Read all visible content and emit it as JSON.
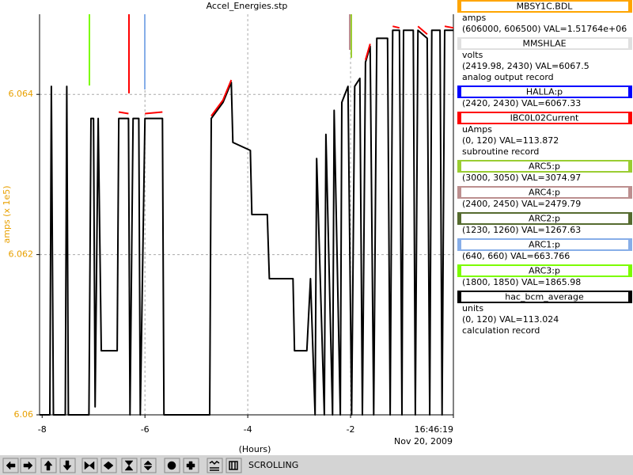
{
  "chart_data": {
    "type": "line",
    "title": "Accel_Energies.stp",
    "ylabel": "amps (x 1e5)",
    "xlabel": "(Hours)",
    "x_date_label": "Nov 20, 2009",
    "axis_color": "#e8a000",
    "grid": true,
    "xlim": [
      -8.05,
      0
    ],
    "xticks": [
      -8,
      -6,
      -4,
      -2,
      {
        "value": 0,
        "label": "16:46:19"
      }
    ],
    "ylim": [
      6.06,
      6.065
    ],
    "yticks": [
      6.06,
      6.062,
      6.064
    ],
    "series": [
      {
        "name": "MBSY1C.BDL",
        "color": "#ffa500",
        "lines": [
          "amps",
          "(606000, 606500)  VAL=1.51764e+06"
        ]
      },
      {
        "name": "MMSHLAE",
        "color": "#e0e0e0",
        "lines": [
          "volts",
          "(2419.98, 2430) VAL=6067.5",
          "analog output record"
        ]
      },
      {
        "name": "HALLA:p",
        "color": "#0000ff",
        "lines": [
          "(2420, 2430) VAL=6067.33"
        ]
      },
      {
        "name": "IBC0L02Current",
        "color": "#ff0000",
        "lines": [
          "uAmps",
          "(0, 120) VAL=113.872",
          "subroutine record"
        ],
        "x": [
          -6.51,
          -6.32,
          -6.3,
          -6.0,
          -5.66,
          -5.6,
          -4.71,
          -4.48,
          -4.32,
          -4.3,
          -1.71,
          -1.62,
          -1.6,
          -1.18,
          -1.05,
          -1.02,
          -0.69,
          -0.51,
          -0.49,
          -0.17,
          0.0
        ],
        "values": [
          6.06378,
          6.06376,
          null,
          6.06376,
          6.06378,
          null,
          6.06373,
          6.06393,
          6.06418,
          null,
          6.06443,
          6.06463,
          null,
          6.06485,
          6.06483,
          null,
          6.06485,
          6.06475,
          null,
          6.06485,
          6.06483
        ]
      },
      {
        "name": "ARC5:p",
        "color": "#9acd32",
        "lines": [
          "(3000, 3050) VAL=3074.97"
        ]
      },
      {
        "name": "ARC4:p",
        "color": "#bc8f8f",
        "lines": [
          "(2400, 2450) VAL=2479.79"
        ]
      },
      {
        "name": "ARC2:p",
        "color": "#556b2f",
        "lines": [
          "(1230, 1260) VAL=1267.63"
        ]
      },
      {
        "name": "ARC1:p",
        "color": "#87aee8",
        "lines": [
          "(640, 660) VAL=663.766"
        ]
      },
      {
        "name": "ARC3:p",
        "color": "#7cfc00",
        "lines": [
          "(1800, 1850) VAL=1865.98"
        ]
      },
      {
        "name": "hac_bcm_average",
        "color": "#000000",
        "lines": [
          "units",
          "(0, 120) VAL=113.024",
          "calculation record"
        ],
        "x": [
          -8.05,
          -7.85,
          -7.82,
          -7.78,
          -7.55,
          -7.52,
          -7.49,
          -7.09,
          -7.05,
          -7.0,
          -6.97,
          -6.91,
          -6.85,
          -6.78,
          -6.54,
          -6.51,
          -6.32,
          -6.29,
          -6.23,
          -6.12,
          -6.09,
          -6.0,
          -5.66,
          -5.63,
          -4.74,
          -4.71,
          -4.48,
          -4.32,
          -4.29,
          -3.95,
          -3.92,
          -3.62,
          -3.58,
          -3.12,
          -3.09,
          -2.85,
          -2.78,
          -2.69,
          -2.66,
          -2.51,
          -2.48,
          -2.35,
          -2.32,
          -2.2,
          -2.17,
          -2.05,
          -1.98,
          -1.92,
          -1.82,
          -1.77,
          -1.71,
          -1.62,
          -1.55,
          -1.49,
          -1.28,
          -1.23,
          -1.18,
          -1.05,
          -1.0,
          -0.97,
          -0.78,
          -0.74,
          -0.69,
          -0.51,
          -0.46,
          -0.42,
          -0.26,
          -0.22,
          -0.17,
          0.0
        ],
        "values": [
          6.06,
          6.06,
          6.0641,
          6.06,
          6.06,
          6.0641,
          6.06,
          6.06,
          6.0637,
          6.0637,
          6.0601,
          6.0637,
          6.0608,
          6.0608,
          6.0608,
          6.0637,
          6.0637,
          6.06,
          6.0637,
          6.0637,
          6.06,
          6.0637,
          6.0637,
          6.06,
          6.06,
          6.0637,
          6.0639,
          6.06415,
          6.0634,
          6.0633,
          6.0625,
          6.0625,
          6.0617,
          6.0617,
          6.0608,
          6.0608,
          6.0617,
          6.06,
          6.0632,
          6.06,
          6.0635,
          6.06,
          6.0638,
          6.06,
          6.0639,
          6.0641,
          6.06,
          6.0641,
          6.0642,
          6.06,
          6.0644,
          6.0646,
          6.06,
          6.0647,
          6.0647,
          6.06,
          6.0648,
          6.0648,
          6.06,
          6.0648,
          6.0648,
          6.06,
          6.0648,
          6.0647,
          6.06,
          6.0648,
          6.0648,
          6.06,
          6.0648,
          6.0648
        ]
      }
    ]
  },
  "toolbar": {
    "status": "SCROLLING"
  }
}
